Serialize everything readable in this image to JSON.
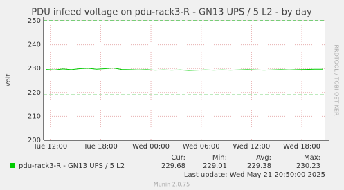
{
  "chart_data": {
    "type": "line",
    "title": "PDU infeed voltage on pdu-rack3-R - GN13 UPS / 5 L2 - by day",
    "y_label": "Volt",
    "x": [
      -0.5,
      0.5,
      1.5,
      2.5,
      3.5,
      4.5,
      5.5,
      6.5,
      7.5,
      8.5,
      9.5,
      10.5,
      11.5,
      12.5,
      13.5,
      14.5,
      15.5,
      16.5,
      17.5,
      18.5,
      19.5,
      20.5,
      21.5,
      22.5,
      23.5,
      24.5,
      25.5,
      26.5,
      27.5,
      28.5,
      29.5,
      30.5,
      31.5,
      32.5
    ],
    "series": [
      {
        "name": "pdu-rack3-R - GN13 UPS / 5 L2",
        "color": "#00cc00",
        "values": [
          229.6,
          229.4,
          229.8,
          229.5,
          229.9,
          230.1,
          229.7,
          229.9,
          230.2,
          229.6,
          229.5,
          229.4,
          229.5,
          229.3,
          229.4,
          229.3,
          229.4,
          229.2,
          229.3,
          229.4,
          229.3,
          229.4,
          229.3,
          229.4,
          229.5,
          229.4,
          229.3,
          229.4,
          229.5,
          229.4,
          229.5,
          229.6,
          229.7,
          229.7
        ]
      }
    ],
    "thresholds": [
      250,
      219
    ],
    "threshold_color": "#00aa00",
    "xlim": [
      -0.8,
      32.8
    ],
    "xticks": [
      {
        "value": 0,
        "label": "Tue 12:00"
      },
      {
        "value": 6,
        "label": "Tue 18:00"
      },
      {
        "value": 12,
        "label": "Wed 00:00"
      },
      {
        "value": 18,
        "label": "Wed 06:00"
      },
      {
        "value": 24,
        "label": "Wed 12:00"
      },
      {
        "value": 30,
        "label": "Wed 18:00"
      }
    ],
    "ylim": [
      200,
      250
    ],
    "yticks": [
      200,
      210,
      220,
      230,
      240,
      250
    ],
    "grid": true,
    "legend_stats": {
      "headers": [
        "Cur:",
        "Min:",
        "Avg:",
        "Max:"
      ],
      "values": [
        229.68,
        229.01,
        229.38,
        230.23
      ]
    },
    "last_update": "Last update: Wed May 21 20:50:00 2025",
    "footer": "Munin 2.0.75",
    "watermark": "RRDTOOL / TOBI OETIKER"
  }
}
